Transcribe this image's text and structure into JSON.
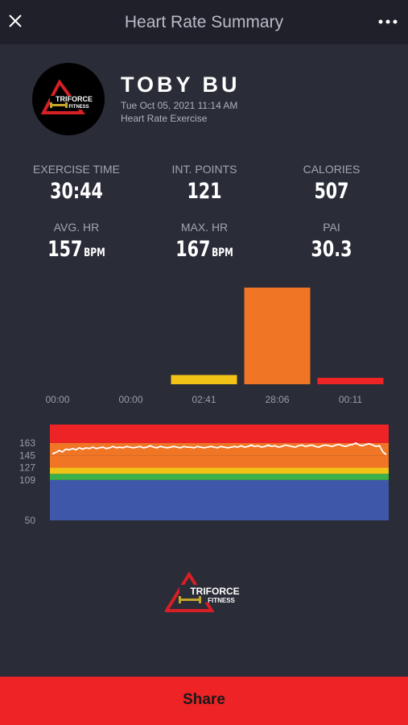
{
  "header": {
    "title": "Heart Rate Summary",
    "close_icon": "close-icon",
    "more_icon": "more-options-icon"
  },
  "profile": {
    "name": "TOBY BU",
    "datetime": "Tue Oct 05, 2021 11:14 AM",
    "activity": "Heart Rate Exercise",
    "logo_top": "TRIFORCE",
    "logo_bottom": "FITNESS"
  },
  "stats": [
    {
      "label": "EXERCISE TIME",
      "value": "30:44",
      "unit": ""
    },
    {
      "label": "INT. POINTS",
      "value": "121",
      "unit": ""
    },
    {
      "label": "CALORIES",
      "value": "507",
      "unit": ""
    },
    {
      "label": "AVG. HR",
      "value": "157",
      "unit": "BPM"
    },
    {
      "label": "MAX. HR",
      "value": "167",
      "unit": "BPM"
    },
    {
      "label": "PAI",
      "value": "30.3",
      "unit": ""
    }
  ],
  "chart_data": [
    {
      "type": "bar",
      "categories": [
        "00:00",
        "00:00",
        "02:41",
        "28:06",
        "00:11"
      ],
      "values_seconds": [
        0,
        0,
        161,
        1686,
        11
      ],
      "colors": [
        "#3f57a8",
        "#3ab14a",
        "#f2c317",
        "#f07525",
        "#ee2326"
      ]
    },
    {
      "type": "area",
      "ylabels": [
        "163",
        "145",
        "127",
        "109",
        "50"
      ],
      "zones": [
        {
          "from": 50,
          "to": 109,
          "color": "#3f57a8"
        },
        {
          "from": 109,
          "to": 118,
          "color": "#3ab14a"
        },
        {
          "from": 118,
          "to": 127,
          "color": "#f2c317"
        },
        {
          "from": 127,
          "to": 145,
          "color": "#f07525"
        },
        {
          "from": 145,
          "to": 163,
          "color": "#f07525"
        },
        {
          "from": 163,
          "to": 190,
          "color": "#ee2326"
        }
      ],
      "series": [
        {
          "color": "#ffffff",
          "values": [
            147,
            149,
            152,
            150,
            154,
            153,
            155,
            153,
            156,
            154,
            156,
            155,
            157,
            155,
            156,
            157,
            155,
            156,
            158,
            156,
            157,
            156,
            158,
            157,
            156,
            157,
            158,
            156,
            157,
            159,
            157,
            156,
            158,
            157,
            156,
            157,
            158,
            157,
            156,
            158,
            157,
            157,
            156,
            158,
            157,
            156,
            157,
            158,
            157,
            156,
            158,
            157,
            156,
            157,
            158,
            157,
            159,
            157,
            158,
            160,
            158,
            159,
            157,
            158,
            160,
            158,
            159,
            157,
            158,
            160,
            159,
            158,
            157,
            159,
            160,
            158,
            159,
            160,
            158,
            157,
            159,
            160,
            159,
            158,
            160,
            161,
            159,
            158,
            160,
            161,
            163,
            160,
            159,
            161,
            162,
            160,
            158,
            159,
            150,
            146
          ]
        }
      ]
    }
  ],
  "footer": {
    "logo_top": "TRIFORCE",
    "logo_bottom": "FITNESS",
    "share_label": "Share"
  }
}
